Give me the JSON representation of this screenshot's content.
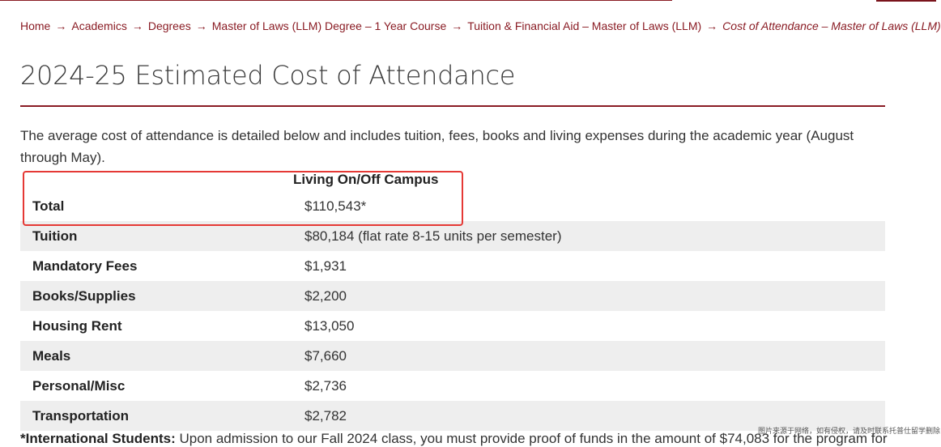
{
  "breadcrumb": {
    "items": [
      "Home",
      "Academics",
      "Degrees",
      "Master of Laws (LLM) Degree – 1 Year Course",
      "Tuition & Financial Aid – Master of Laws (LLM)",
      "Cost of Attendance – Master of Laws (LLM)"
    ],
    "separator": "→"
  },
  "page_title": "2024-25 Estimated Cost of Attendance",
  "intro_text": "The average cost of attendance is detailed below and includes tuition, fees, books and living expenses during the academic year (August through May).",
  "table": {
    "column_header": "Living On/Off Campus",
    "rows": [
      {
        "label": "Total",
        "value": "$110,543*"
      },
      {
        "label": "Tuition",
        "value": "$80,184 (flat rate 8-15 units per semester)"
      },
      {
        "label": "Mandatory Fees",
        "value": "$1,931"
      },
      {
        "label": "Books/Supplies",
        "value": "$2,200"
      },
      {
        "label": "Housing Rent",
        "value": "$13,050"
      },
      {
        "label": "Meals",
        "value": "$7,660"
      },
      {
        "label": "Personal/Misc",
        "value": "$2,736"
      },
      {
        "label": "Transportation",
        "value": "$2,782"
      }
    ]
  },
  "footnote": {
    "lead": "*International Students:",
    "text": "Upon admission to our Fall 2024 class, you must provide proof of funds in the amount of $74,083 for the program for"
  },
  "watermark": "图片来源于网络，如有侵权，请及时联系托普仕留学删除",
  "colors": {
    "brand": "#8a1c24",
    "highlight": "#e53935",
    "row_shade": "#eeeeee"
  }
}
